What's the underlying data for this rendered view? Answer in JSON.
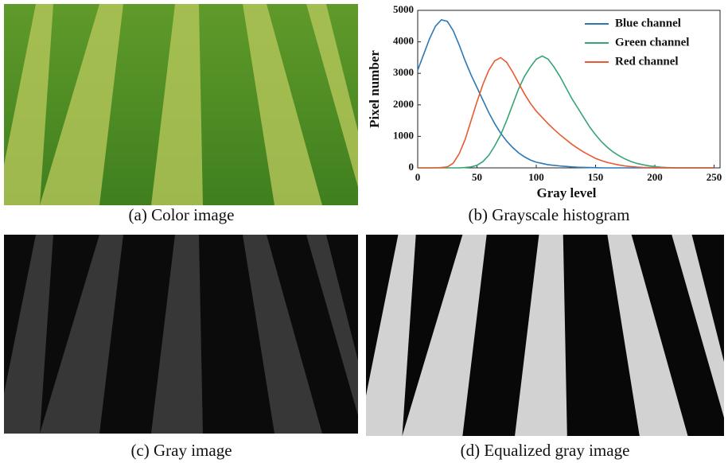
{
  "captions": [
    "(a) Color image",
    "(b) Grayscale histogram",
    "(c) Gray image",
    "(d) Equalized gray image"
  ],
  "chart_data": {
    "type": "line",
    "xlabel": "Gray level",
    "ylabel": "Pixel number",
    "x": [
      0,
      5,
      10,
      15,
      20,
      25,
      30,
      35,
      40,
      45,
      50,
      55,
      60,
      65,
      70,
      75,
      80,
      85,
      90,
      95,
      100,
      105,
      110,
      115,
      120,
      125,
      130,
      135,
      140,
      145,
      150,
      155,
      160,
      165,
      170,
      175,
      180,
      185,
      190,
      195,
      200,
      205,
      210,
      215,
      220,
      225,
      230,
      235,
      240,
      245,
      250
    ],
    "series": [
      {
        "name": "Blue channel",
        "color": "#2b78b5",
        "values": [
          3100,
          3600,
          4100,
          4500,
          4700,
          4650,
          4350,
          3900,
          3400,
          2950,
          2550,
          2150,
          1750,
          1400,
          1100,
          850,
          650,
          480,
          350,
          250,
          180,
          140,
          100,
          80,
          60,
          45,
          30,
          20,
          15,
          10,
          5,
          0,
          0,
          0,
          0,
          0,
          0,
          0,
          0,
          0,
          0,
          0,
          0,
          0,
          0,
          0,
          0,
          0,
          0,
          0,
          0
        ]
      },
      {
        "name": "Green channel",
        "color": "#35a574",
        "values": [
          0,
          0,
          0,
          0,
          0,
          0,
          0,
          0,
          10,
          30,
          80,
          200,
          400,
          700,
          1050,
          1500,
          2000,
          2500,
          2900,
          3200,
          3450,
          3550,
          3450,
          3200,
          2900,
          2550,
          2200,
          1900,
          1600,
          1300,
          1050,
          830,
          650,
          500,
          380,
          280,
          200,
          140,
          100,
          65,
          40,
          20,
          10,
          5,
          0,
          0,
          0,
          0,
          0,
          0,
          0
        ]
      },
      {
        "name": "Red channel",
        "color": "#e85a32",
        "values": [
          0,
          0,
          0,
          0,
          10,
          30,
          150,
          450,
          900,
          1500,
          2100,
          2650,
          3100,
          3400,
          3500,
          3350,
          3050,
          2700,
          2350,
          2050,
          1800,
          1600,
          1400,
          1220,
          1050,
          900,
          750,
          620,
          500,
          400,
          300,
          230,
          170,
          130,
          90,
          60,
          40,
          25,
          15,
          10,
          5,
          3,
          0,
          0,
          0,
          0,
          0,
          0,
          0,
          0,
          0
        ]
      }
    ],
    "xlim": [
      0,
      255
    ],
    "xticks": [
      0,
      50,
      100,
      150,
      200,
      250
    ],
    "ylim": [
      0,
      5000
    ],
    "yticks": [
      0,
      1000,
      2000,
      3000,
      4000,
      5000
    ],
    "legend": "upper right",
    "grid": false
  }
}
